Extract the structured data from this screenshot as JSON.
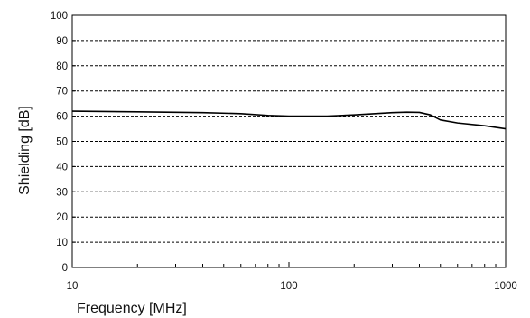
{
  "chart_data": {
    "type": "line",
    "xlabel": "Frequency [MHz]",
    "ylabel": "Shielding [dB]",
    "x_scale": "log",
    "xlim": [
      10,
      1000
    ],
    "ylim": [
      0,
      100
    ],
    "x_ticks": [
      10,
      100,
      1000
    ],
    "x_tick_labels": [
      "10",
      "100",
      "1000"
    ],
    "y_ticks": [
      0,
      10,
      20,
      30,
      40,
      50,
      60,
      70,
      80,
      90,
      100
    ],
    "y_tick_labels": [
      "0",
      "10",
      "20",
      "30",
      "40",
      "50",
      "60",
      "70",
      "80",
      "90",
      "100"
    ],
    "grid": "horizontal-dashed",
    "series": [
      {
        "x": [
          10,
          20,
          40,
          60,
          80,
          100,
          150,
          200,
          250,
          300,
          350,
          400,
          450,
          500,
          600,
          800,
          1000
        ],
        "y": [
          62,
          61.7,
          61.4,
          61,
          60.3,
          60,
          60,
          60.5,
          61,
          61.4,
          61.6,
          61.5,
          60.5,
          58.5,
          57.3,
          56.2,
          55
        ]
      }
    ]
  }
}
